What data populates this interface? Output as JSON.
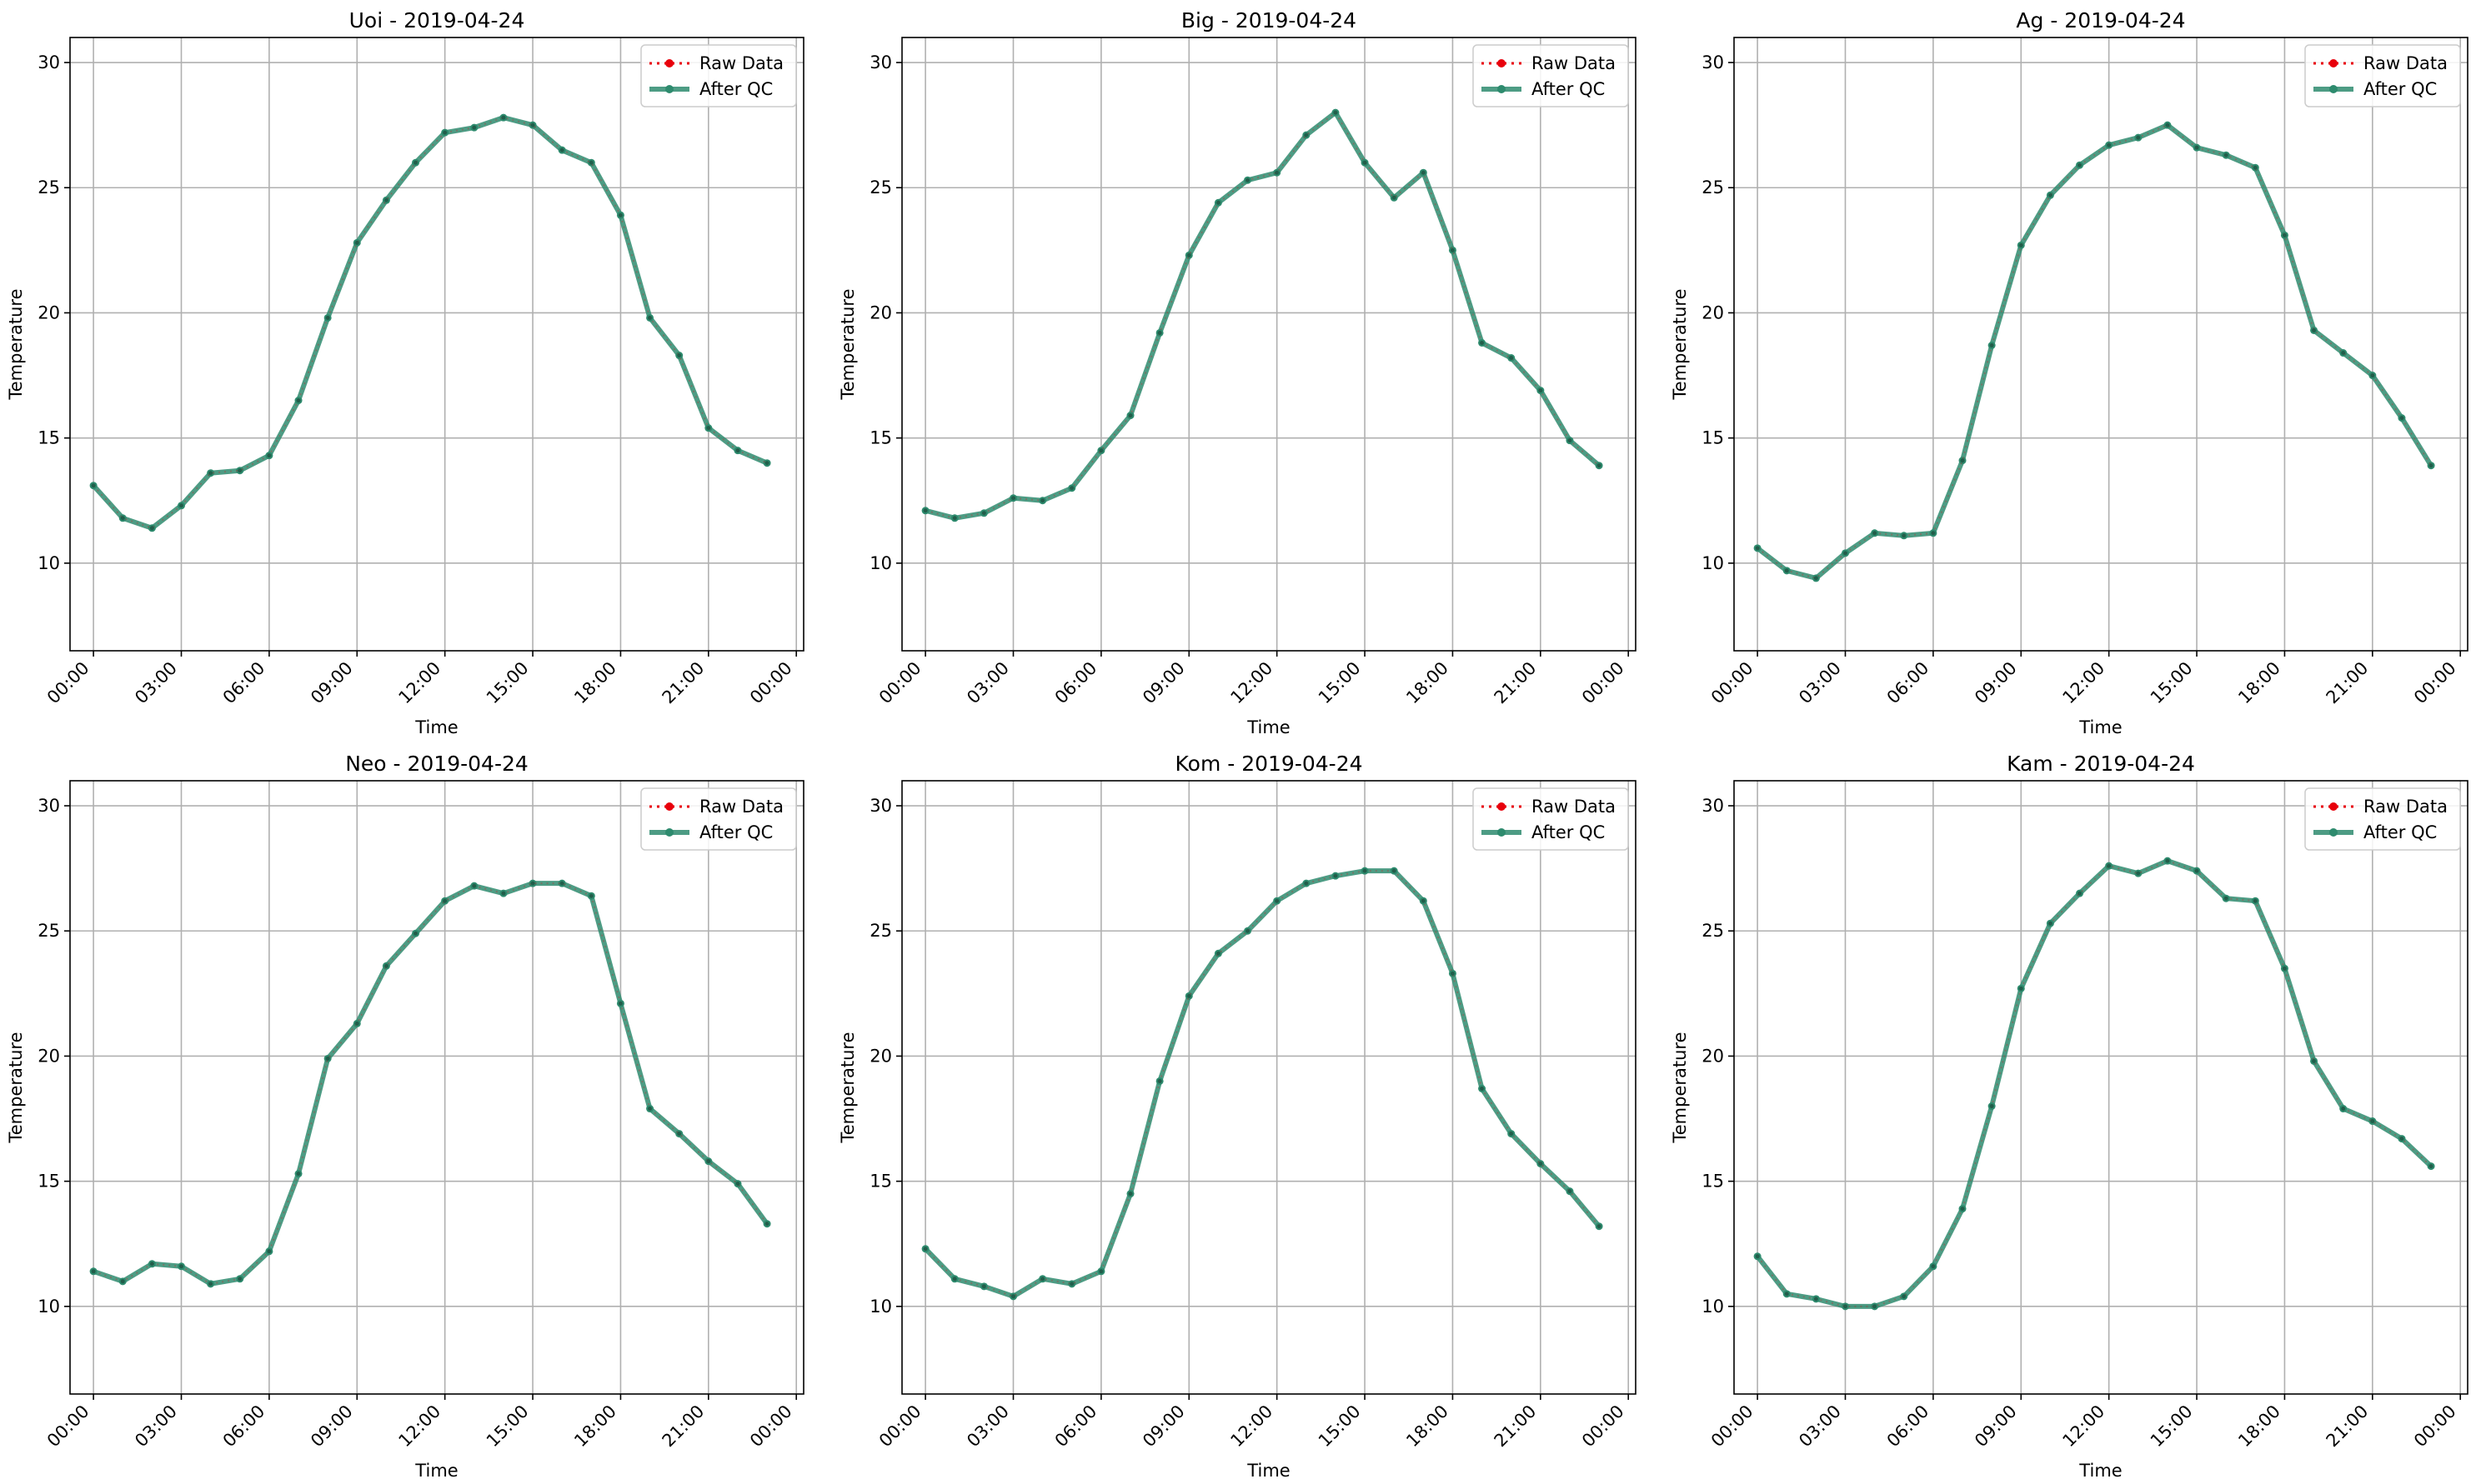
{
  "figure": {
    "legend": {
      "raw": "Raw Data",
      "qc": "After QC",
      "placement": "upper-right"
    },
    "colors": {
      "raw": "#e8000b",
      "qc": "#2e8b6e",
      "grid": "#b0b0b0"
    },
    "grid": true
  },
  "chart_data": [
    {
      "type": "line",
      "title": "Uoi - 2019-04-24",
      "xlabel": "Time",
      "ylabel": "Temperature",
      "xticks": [
        "00:00",
        "03:00",
        "06:00",
        "09:00",
        "12:00",
        "15:00",
        "18:00",
        "21:00",
        "00:00"
      ],
      "yticks": [
        "10",
        "15",
        "20",
        "25",
        "30"
      ],
      "ylim": [
        6.5,
        31
      ],
      "x": [
        "00:00",
        "01:00",
        "02:00",
        "03:00",
        "04:00",
        "05:00",
        "06:00",
        "07:00",
        "08:00",
        "09:00",
        "10:00",
        "11:00",
        "12:00",
        "13:00",
        "14:00",
        "15:00",
        "16:00",
        "17:00",
        "18:00",
        "19:00",
        "20:00",
        "21:00",
        "22:00",
        "23:00"
      ],
      "series": [
        {
          "name": "Raw Data",
          "values": [
            13.1,
            11.8,
            11.4,
            12.3,
            13.6,
            13.7,
            14.3,
            16.5,
            19.8,
            22.8,
            24.5,
            26.0,
            27.2,
            27.4,
            27.8,
            27.5,
            26.5,
            26.0,
            23.9,
            19.8,
            18.3,
            15.4,
            14.5,
            14.0
          ]
        },
        {
          "name": "After QC",
          "values": [
            13.1,
            11.8,
            11.4,
            12.3,
            13.6,
            13.7,
            14.3,
            16.5,
            19.8,
            22.8,
            24.5,
            26.0,
            27.2,
            27.4,
            27.8,
            27.5,
            26.5,
            26.0,
            23.9,
            19.8,
            18.3,
            15.4,
            14.5,
            14.0
          ]
        }
      ]
    },
    {
      "type": "line",
      "title": "Big - 2019-04-24",
      "xlabel": "Time",
      "ylabel": "Temperature",
      "xticks": [
        "00:00",
        "03:00",
        "06:00",
        "09:00",
        "12:00",
        "15:00",
        "18:00",
        "21:00",
        "00:00"
      ],
      "yticks": [
        "10",
        "15",
        "20",
        "25",
        "30"
      ],
      "ylim": [
        6.5,
        31
      ],
      "x": [
        "00:00",
        "01:00",
        "02:00",
        "03:00",
        "04:00",
        "05:00",
        "06:00",
        "07:00",
        "08:00",
        "09:00",
        "10:00",
        "11:00",
        "12:00",
        "13:00",
        "14:00",
        "15:00",
        "16:00",
        "17:00",
        "18:00",
        "19:00",
        "20:00",
        "21:00",
        "22:00",
        "23:00"
      ],
      "series": [
        {
          "name": "Raw Data",
          "values": [
            12.1,
            11.8,
            12.0,
            12.6,
            12.5,
            13.0,
            14.5,
            15.9,
            19.2,
            22.3,
            24.4,
            25.3,
            25.6,
            27.1,
            28.0,
            26.0,
            24.6,
            25.6,
            22.5,
            18.8,
            18.2,
            16.9,
            14.9,
            13.9
          ]
        },
        {
          "name": "After QC",
          "values": [
            12.1,
            11.8,
            12.0,
            12.6,
            12.5,
            13.0,
            14.5,
            15.9,
            19.2,
            22.3,
            24.4,
            25.3,
            25.6,
            27.1,
            28.0,
            26.0,
            24.6,
            25.6,
            22.5,
            18.8,
            18.2,
            16.9,
            14.9,
            13.9
          ]
        }
      ]
    },
    {
      "type": "line",
      "title": "Ag - 2019-04-24",
      "xlabel": "Time",
      "ylabel": "Temperature",
      "xticks": [
        "00:00",
        "03:00",
        "06:00",
        "09:00",
        "12:00",
        "15:00",
        "18:00",
        "21:00",
        "00:00"
      ],
      "yticks": [
        "10",
        "15",
        "20",
        "25",
        "30"
      ],
      "ylim": [
        6.5,
        31
      ],
      "x": [
        "00:00",
        "01:00",
        "02:00",
        "03:00",
        "04:00",
        "05:00",
        "06:00",
        "07:00",
        "08:00",
        "09:00",
        "10:00",
        "11:00",
        "12:00",
        "13:00",
        "14:00",
        "15:00",
        "16:00",
        "17:00",
        "18:00",
        "19:00",
        "20:00",
        "21:00",
        "22:00",
        "23:00"
      ],
      "series": [
        {
          "name": "Raw Data",
          "values": [
            10.6,
            9.7,
            9.4,
            10.4,
            11.2,
            11.1,
            11.2,
            14.1,
            18.7,
            22.7,
            24.7,
            25.9,
            26.7,
            27.0,
            27.5,
            26.6,
            26.3,
            25.8,
            23.1,
            19.3,
            18.4,
            17.5,
            15.8,
            13.9
          ]
        },
        {
          "name": "After QC",
          "values": [
            10.6,
            9.7,
            9.4,
            10.4,
            11.2,
            11.1,
            11.2,
            14.1,
            18.7,
            22.7,
            24.7,
            25.9,
            26.7,
            27.0,
            27.5,
            26.6,
            26.3,
            25.8,
            23.1,
            19.3,
            18.4,
            17.5,
            15.8,
            13.9
          ]
        }
      ]
    },
    {
      "type": "line",
      "title": "Neo - 2019-04-24",
      "xlabel": "Time",
      "ylabel": "Temperature",
      "xticks": [
        "00:00",
        "03:00",
        "06:00",
        "09:00",
        "12:00",
        "15:00",
        "18:00",
        "21:00",
        "00:00"
      ],
      "yticks": [
        "10",
        "15",
        "20",
        "25",
        "30"
      ],
      "ylim": [
        6.5,
        31
      ],
      "x": [
        "00:00",
        "01:00",
        "02:00",
        "03:00",
        "04:00",
        "05:00",
        "06:00",
        "07:00",
        "08:00",
        "09:00",
        "10:00",
        "11:00",
        "12:00",
        "13:00",
        "14:00",
        "15:00",
        "16:00",
        "17:00",
        "18:00",
        "19:00",
        "20:00",
        "21:00",
        "22:00",
        "23:00"
      ],
      "series": [
        {
          "name": "Raw Data",
          "values": [
            11.4,
            11.0,
            11.7,
            11.6,
            10.9,
            11.1,
            12.2,
            15.3,
            19.9,
            21.3,
            23.6,
            24.9,
            26.2,
            26.8,
            26.5,
            26.9,
            26.9,
            26.4,
            22.1,
            17.9,
            16.9,
            15.8,
            14.9,
            13.3
          ]
        },
        {
          "name": "After QC",
          "values": [
            11.4,
            11.0,
            11.7,
            11.6,
            10.9,
            11.1,
            12.2,
            15.3,
            19.9,
            21.3,
            23.6,
            24.9,
            26.2,
            26.8,
            26.5,
            26.9,
            26.9,
            26.4,
            22.1,
            17.9,
            16.9,
            15.8,
            14.9,
            13.3
          ]
        }
      ]
    },
    {
      "type": "line",
      "title": "Kom - 2019-04-24",
      "xlabel": "Time",
      "ylabel": "Temperature",
      "xticks": [
        "00:00",
        "03:00",
        "06:00",
        "09:00",
        "12:00",
        "15:00",
        "18:00",
        "21:00",
        "00:00"
      ],
      "yticks": [
        "10",
        "15",
        "20",
        "25",
        "30"
      ],
      "ylim": [
        6.5,
        31
      ],
      "x": [
        "00:00",
        "01:00",
        "02:00",
        "03:00",
        "04:00",
        "05:00",
        "06:00",
        "07:00",
        "08:00",
        "09:00",
        "10:00",
        "11:00",
        "12:00",
        "13:00",
        "14:00",
        "15:00",
        "16:00",
        "17:00",
        "18:00",
        "19:00",
        "20:00",
        "21:00",
        "22:00",
        "23:00"
      ],
      "series": [
        {
          "name": "Raw Data",
          "values": [
            12.3,
            11.1,
            10.8,
            10.4,
            11.1,
            10.9,
            11.4,
            14.5,
            19.0,
            22.4,
            24.1,
            25.0,
            26.2,
            26.9,
            27.2,
            27.4,
            27.4,
            26.2,
            23.3,
            18.7,
            16.9,
            15.7,
            14.6,
            13.2
          ]
        },
        {
          "name": "After QC",
          "values": [
            12.3,
            11.1,
            10.8,
            10.4,
            11.1,
            10.9,
            11.4,
            14.5,
            19.0,
            22.4,
            24.1,
            25.0,
            26.2,
            26.9,
            27.2,
            27.4,
            27.4,
            26.2,
            23.3,
            18.7,
            16.9,
            15.7,
            14.6,
            13.2
          ]
        }
      ]
    },
    {
      "type": "line",
      "title": "Kam - 2019-04-24",
      "xlabel": "Time",
      "ylabel": "Temperature",
      "xticks": [
        "00:00",
        "03:00",
        "06:00",
        "09:00",
        "12:00",
        "15:00",
        "18:00",
        "21:00",
        "00:00"
      ],
      "yticks": [
        "10",
        "15",
        "20",
        "25",
        "30"
      ],
      "ylim": [
        6.5,
        31
      ],
      "x": [
        "00:00",
        "01:00",
        "02:00",
        "03:00",
        "04:00",
        "05:00",
        "06:00",
        "07:00",
        "08:00",
        "09:00",
        "10:00",
        "11:00",
        "12:00",
        "13:00",
        "14:00",
        "15:00",
        "16:00",
        "17:00",
        "18:00",
        "19:00",
        "20:00",
        "21:00",
        "22:00",
        "23:00"
      ],
      "series": [
        {
          "name": "Raw Data",
          "values": [
            12.0,
            10.5,
            10.3,
            10.0,
            10.0,
            10.4,
            11.6,
            13.9,
            18.0,
            22.7,
            25.3,
            26.5,
            27.6,
            27.3,
            27.8,
            27.4,
            26.3,
            26.2,
            23.5,
            19.8,
            17.9,
            17.4,
            16.7,
            15.6
          ]
        },
        {
          "name": "After QC",
          "values": [
            12.0,
            10.5,
            10.3,
            10.0,
            10.0,
            10.4,
            11.6,
            13.9,
            18.0,
            22.7,
            25.3,
            26.5,
            27.6,
            27.3,
            27.8,
            27.4,
            26.3,
            26.2,
            23.5,
            19.8,
            17.9,
            17.4,
            16.7,
            15.6
          ]
        }
      ]
    }
  ]
}
